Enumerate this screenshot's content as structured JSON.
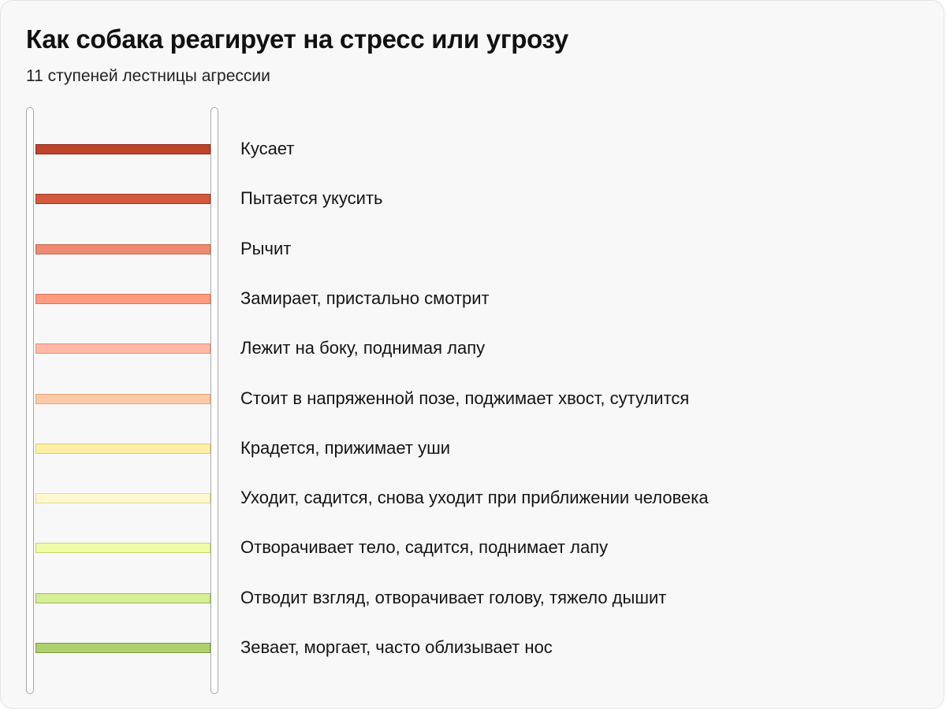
{
  "header": {
    "title": "Как собака реагирует на стресс или угрозу",
    "subtitle": "11 ступеней лестницы агрессии"
  },
  "steps": [
    {
      "label": "Кусает",
      "color": "#c0432b",
      "border": "#8e2a17"
    },
    {
      "label": "Пытается укусить",
      "color": "#d35a3e",
      "border": "#a13a22"
    },
    {
      "label": "Рычит",
      "color": "#ef8b72",
      "border": "#c9654c"
    },
    {
      "label": "Замирает, пристально смотрит",
      "color": "#ff9b80",
      "border": "#e07458"
    },
    {
      "label": "Лежит на боку, поднимая лапу",
      "color": "#ffb9a6",
      "border": "#e69079"
    },
    {
      "label": "Стоит в напряженной позе, поджимает хвост, сутулится",
      "color": "#ffcaa6",
      "border": "#e8a47a"
    },
    {
      "label": "Крадется, прижимает уши",
      "color": "#fff0a8",
      "border": "#e2cb6c"
    },
    {
      "label": "Уходит, садится, снова уходит при приближении человека",
      "color": "#fff8d0",
      "border": "#e8d88c"
    },
    {
      "label": "Отворачивает тело, садится, поднимает лапу",
      "color": "#f1fca8",
      "border": "#cad66c"
    },
    {
      "label": "Отводит взгляд, отворачивает голову, тяжело дышит",
      "color": "#d6ee96",
      "border": "#9fba58"
    },
    {
      "label": "Зевает, моргает, часто облизывает нос",
      "color": "#b0d070",
      "border": "#7b9a3a"
    }
  ]
}
